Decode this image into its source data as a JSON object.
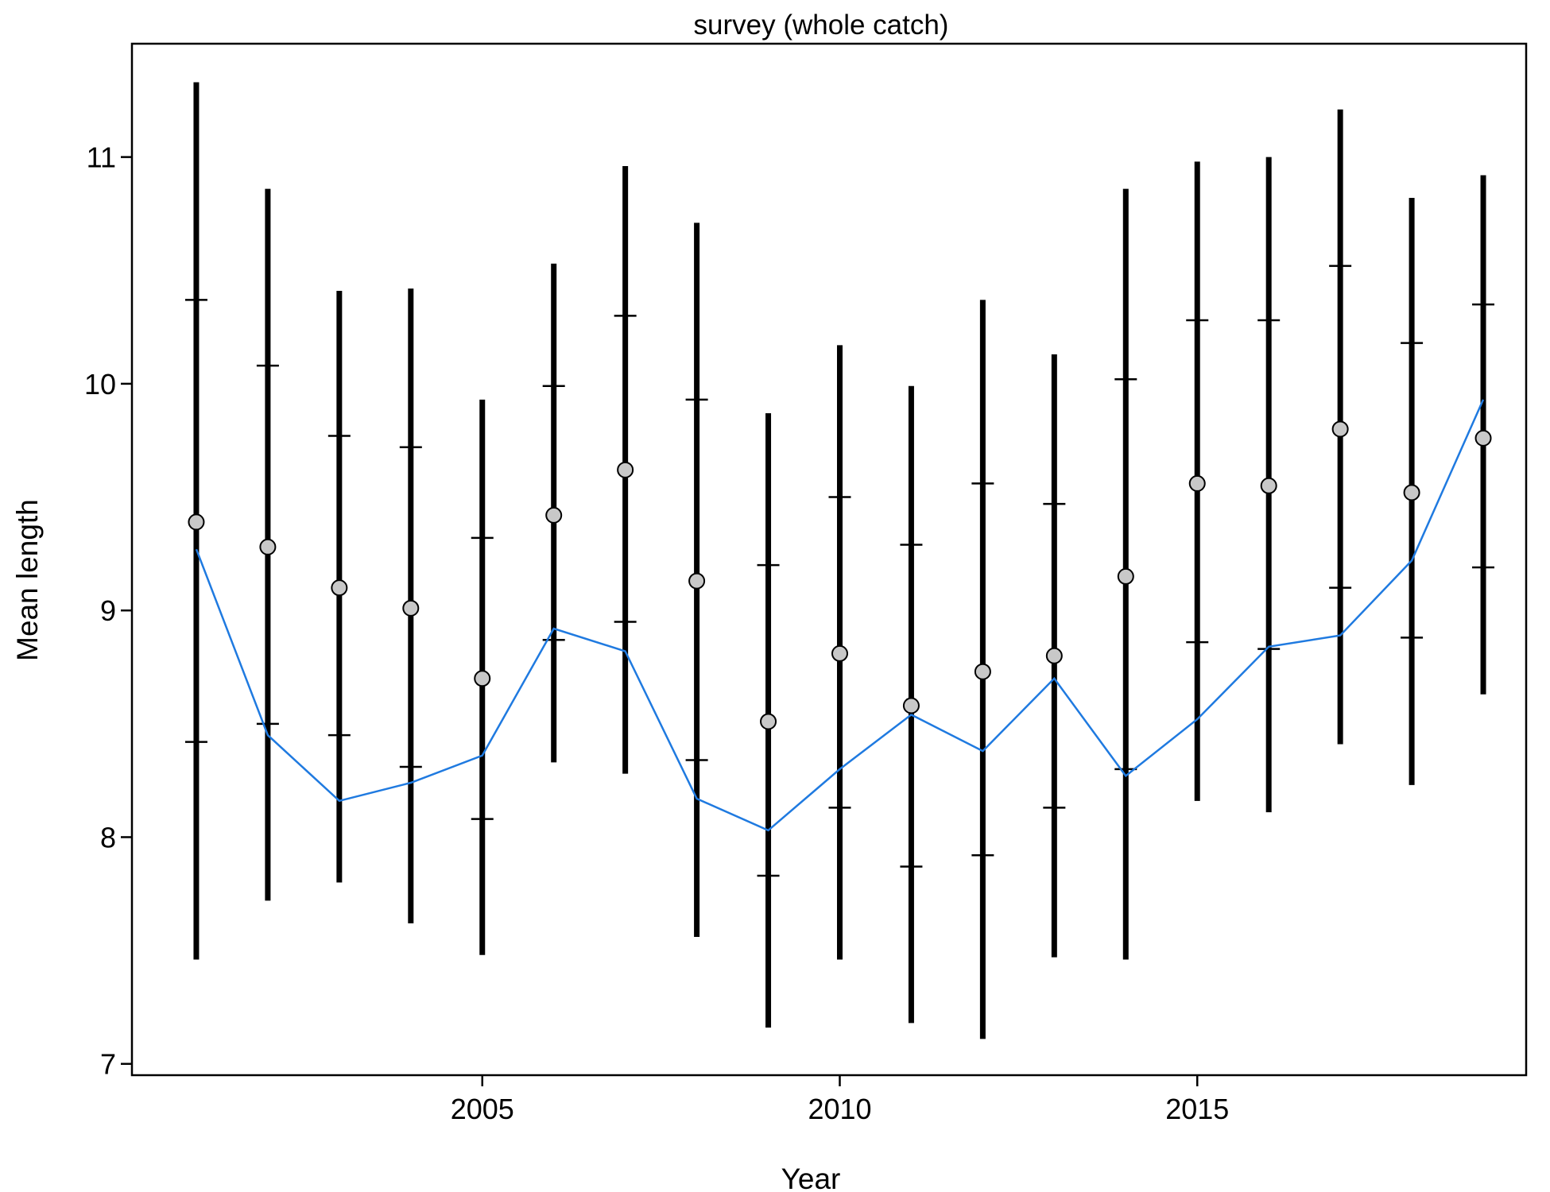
{
  "chart_data": {
    "type": "scatter",
    "title": "survey (whole catch)",
    "xlabel": "Year",
    "ylabel": "Mean length",
    "xlim": [
      2000.1,
      2019.6
    ],
    "ylim": [
      6.95,
      11.5
    ],
    "x_ticks": [
      2005,
      2010,
      2015
    ],
    "y_ticks": [
      7,
      8,
      9,
      10,
      11
    ],
    "grid": false,
    "legend": "none",
    "colors": {
      "observed_point_fill": "#c8c8c8",
      "error_bar": "#000000",
      "expected_line": "#1f7ae0"
    },
    "series": [
      {
        "kind": "observed",
        "x": [
          2001,
          2002,
          2003,
          2004,
          2005,
          2006,
          2007,
          2008,
          2009,
          2010,
          2011,
          2012,
          2013,
          2014,
          2015,
          2016,
          2017,
          2018,
          2019
        ],
        "values": [
          9.39,
          9.28,
          9.1,
          9.01,
          8.7,
          9.42,
          9.62,
          9.13,
          8.51,
          8.81,
          8.58,
          8.73,
          8.8,
          9.15,
          9.56,
          9.55,
          9.8,
          9.52,
          9.76
        ],
        "outer_lower": [
          7.46,
          7.72,
          7.8,
          7.62,
          7.48,
          8.33,
          8.28,
          7.56,
          7.16,
          7.46,
          7.18,
          7.11,
          7.47,
          7.46,
          8.16,
          8.11,
          8.41,
          8.23,
          8.63
        ],
        "outer_upper": [
          11.33,
          10.86,
          10.41,
          10.42,
          9.93,
          10.53,
          10.96,
          10.71,
          9.87,
          10.17,
          9.99,
          10.37,
          10.13,
          10.86,
          10.98,
          11.0,
          11.21,
          10.82,
          10.92
        ],
        "inner_lower": [
          8.42,
          8.5,
          8.45,
          8.31,
          8.08,
          8.87,
          8.95,
          8.34,
          7.83,
          8.13,
          7.87,
          7.92,
          8.13,
          8.3,
          8.86,
          8.83,
          9.1,
          8.88,
          9.19
        ],
        "inner_upper": [
          10.37,
          10.08,
          9.77,
          9.72,
          9.32,
          9.99,
          10.3,
          9.93,
          9.2,
          9.5,
          9.29,
          9.56,
          9.47,
          10.02,
          10.28,
          10.28,
          10.52,
          10.18,
          10.35
        ]
      },
      {
        "kind": "expected",
        "x": [
          2001,
          2002,
          2003,
          2004,
          2005,
          2006,
          2007,
          2008,
          2009,
          2010,
          2011,
          2012,
          2013,
          2014,
          2015,
          2016,
          2017,
          2018,
          2019
        ],
        "values": [
          9.27,
          8.45,
          8.16,
          8.24,
          8.36,
          8.92,
          8.82,
          8.17,
          8.03,
          8.3,
          8.54,
          8.38,
          8.7,
          8.27,
          8.52,
          8.84,
          8.89,
          9.22,
          9.93
        ]
      }
    ]
  }
}
